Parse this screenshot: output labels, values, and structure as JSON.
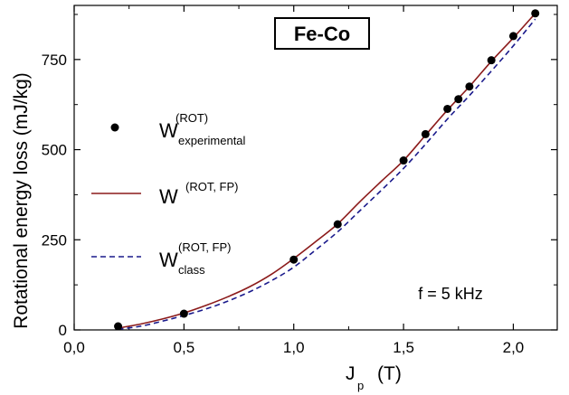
{
  "chart_data": {
    "type": "line",
    "title": "Fe-Co",
    "xlabel": {
      "main": "J",
      "sub": "p",
      "unit": "(T)"
    },
    "ylabel": "Rotational energy loss    (mJ/kg)",
    "xlim": [
      0.0,
      2.2
    ],
    "ylim": [
      0,
      900
    ],
    "x_ticks": [
      "0,0",
      "0,5",
      "1,0",
      "1,5",
      "2,0"
    ],
    "x_tick_values": [
      0.0,
      0.5,
      1.0,
      1.5,
      2.0
    ],
    "y_ticks": [
      "0",
      "250",
      "500",
      "750"
    ],
    "y_tick_values": [
      0,
      250,
      500,
      750
    ],
    "annotation": "f  =  5 kHz",
    "legend_placement": "left",
    "series": [
      {
        "name": "W experimental (ROT)",
        "legend": {
          "main": "W",
          "sup": "(ROT)",
          "sub": "experimental"
        },
        "style": "markers",
        "color": "#000000",
        "x": [
          0.2,
          0.5,
          1.0,
          1.2,
          1.5,
          1.6,
          1.7,
          1.75,
          1.8,
          1.9,
          2.0,
          2.1
        ],
        "y": [
          10,
          45,
          195,
          293,
          470,
          543,
          613,
          640,
          675,
          748,
          815,
          878
        ]
      },
      {
        "name": "W (ROT, FP)",
        "legend": {
          "main": "W",
          "sup": "(ROT, FP)",
          "sub": ""
        },
        "style": "solid",
        "color": "#8b1a1a",
        "x": [
          0.2,
          0.3,
          0.4,
          0.5,
          0.6,
          0.7,
          0.8,
          0.9,
          1.0,
          1.1,
          1.2,
          1.3,
          1.4,
          1.5,
          1.6,
          1.7,
          1.8,
          1.9,
          2.0,
          2.1
        ],
        "y": [
          5,
          16,
          30,
          47,
          68,
          92,
          120,
          155,
          198,
          245,
          294,
          355,
          413,
          470,
          540,
          610,
          675,
          745,
          810,
          878
        ]
      },
      {
        "name": "W class (ROT, FP)",
        "legend": {
          "main": "W",
          "sup": "(ROT, FP)",
          "sub": "class"
        },
        "style": "dashed",
        "color": "#1a1a8c",
        "x": [
          0.2,
          0.3,
          0.4,
          0.5,
          0.6,
          0.7,
          0.8,
          0.9,
          1.0,
          1.1,
          1.2,
          1.3,
          1.4,
          1.5,
          1.6,
          1.7,
          1.8,
          1.9,
          2.0,
          2.1
        ],
        "y": [
          2,
          10,
          24,
          40,
          58,
          80,
          106,
          137,
          174,
          222,
          272,
          330,
          388,
          448,
          515,
          585,
          650,
          718,
          788,
          862
        ]
      }
    ]
  }
}
